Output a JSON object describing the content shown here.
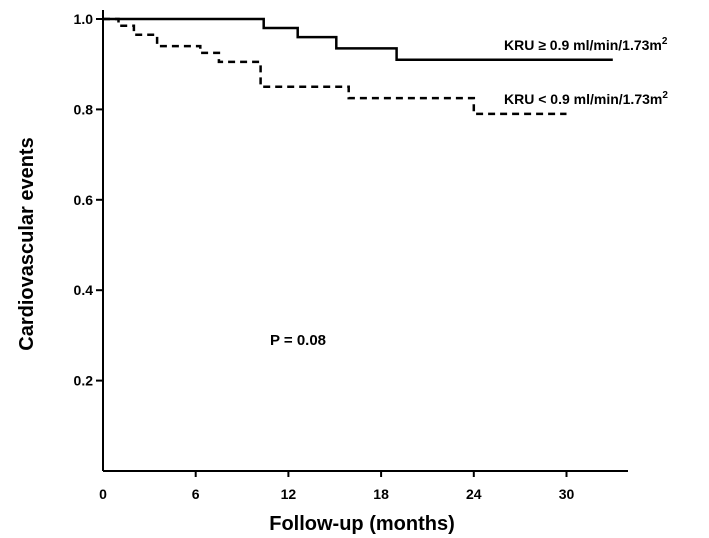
{
  "chart_data": {
    "type": "line",
    "title": "",
    "xlabel": "Follow-up (months)",
    "ylabel": "Cardiovascular events",
    "xlim": [
      0,
      34
    ],
    "ylim": [
      0,
      1.0
    ],
    "xticks": [
      0,
      6,
      12,
      18,
      24,
      30
    ],
    "xtick_labels": [
      "0",
      "6",
      "12",
      "18",
      "24",
      "30"
    ],
    "yticks": [
      0.2,
      0.4,
      0.6,
      0.8,
      1.0
    ],
    "ytick_labels": [
      "0.2",
      "0.4",
      "0.6",
      "0.8",
      "1.0"
    ],
    "grid": false,
    "annotation": "P = 0.08",
    "series": [
      {
        "name": "KRU ≥ 0.9 ml/min/1.73m",
        "name_sup": "2",
        "style": "solid",
        "color": "#000000",
        "x": [
          0,
          10.4,
          10.4,
          12.6,
          12.6,
          15.1,
          15.1,
          19.0,
          19.0,
          33.0
        ],
        "y": [
          1.0,
          1.0,
          0.98,
          0.98,
          0.96,
          0.96,
          0.935,
          0.935,
          0.91,
          0.91
        ]
      },
      {
        "name": "KRU < 0.9 ml/min/1.73m",
        "name_sup": "2",
        "style": "dashed",
        "color": "#000000",
        "x": [
          0,
          1.0,
          1.0,
          2.0,
          2.0,
          3.5,
          3.5,
          6.3,
          6.3,
          7.5,
          7.5,
          10.2,
          10.2,
          15.9,
          15.9,
          24.0,
          24.0,
          30.0
        ],
        "y": [
          1.0,
          1.0,
          0.985,
          0.985,
          0.965,
          0.965,
          0.94,
          0.94,
          0.925,
          0.925,
          0.905,
          0.905,
          0.85,
          0.85,
          0.825,
          0.825,
          0.79,
          0.79
        ]
      }
    ]
  }
}
